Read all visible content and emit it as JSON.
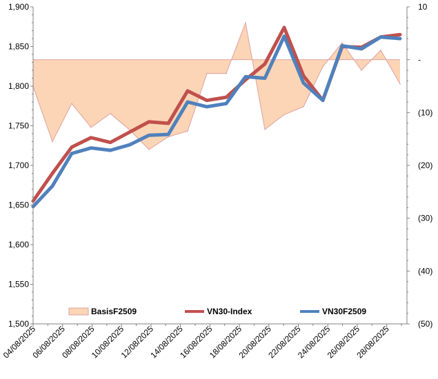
{
  "chart_data": {
    "type": "line",
    "title": "",
    "xlabel": "",
    "ylabel": "",
    "y2label": "",
    "ylim": [
      1500,
      1900
    ],
    "y2lim": [
      -50,
      10
    ],
    "y_ticks": [
      {
        "value": 1500,
        "label": "1,500"
      },
      {
        "value": 1550,
        "label": "1,550"
      },
      {
        "value": 1600,
        "label": "1,600"
      },
      {
        "value": 1650,
        "label": "1,650"
      },
      {
        "value": 1700,
        "label": "1,700"
      },
      {
        "value": 1750,
        "label": "1,750"
      },
      {
        "value": 1800,
        "label": "1,800"
      },
      {
        "value": 1850,
        "label": "1,850"
      },
      {
        "value": 1900,
        "label": "1,900"
      }
    ],
    "y2_ticks": [
      {
        "value": 10,
        "label": "10"
      },
      {
        "value": 0,
        "label": "-"
      },
      {
        "value": -10,
        "label": "(10)"
      },
      {
        "value": -20,
        "label": "(20)"
      },
      {
        "value": -30,
        "label": "(30)"
      },
      {
        "value": -40,
        "label": "(40)"
      },
      {
        "value": -50,
        "label": "(50)"
      }
    ],
    "x_tick_labels": [
      "04/08/2025",
      "06/08/2025",
      "08/08/2025",
      "10/08/2025",
      "12/08/2025",
      "14/08/2025",
      "16/08/2025",
      "18/08/2025",
      "20/08/2025",
      "22/08/2025",
      "24/08/2025",
      "26/08/2025",
      "28/08/2025"
    ],
    "x": [
      "04/08/2025",
      "05/08/2025",
      "06/08/2025",
      "07/08/2025",
      "08/08/2025",
      "11/08/2025",
      "12/08/2025",
      "13/08/2025",
      "14/08/2025",
      "15/08/2025",
      "18/08/2025",
      "19/08/2025",
      "20/08/2025",
      "21/08/2025",
      "22/08/2025",
      "25/08/2025",
      "26/08/2025",
      "27/08/2025",
      "28/08/2025",
      "29/08/2025"
    ],
    "series": [
      {
        "name": "BasisF2509",
        "axis": "secondary",
        "style": "area",
        "color": "#fbd5b5",
        "edge_color": "#e0a0a0",
        "values": [
          -5.1,
          -15.5,
          -8.3,
          -12.8,
          -10.2,
          -13.3,
          -17.0,
          -14.6,
          -13.5,
          -2.6,
          -2.6,
          7.0,
          -13.2,
          -10.4,
          -8.9,
          -1.3,
          3.2,
          -2.0,
          1.8,
          -4.6
        ]
      },
      {
        "name": "VN30-Index",
        "axis": "primary",
        "style": "line",
        "color": "#c0504d",
        "values": [
          1655,
          1690,
          1723,
          1735,
          1729,
          1742,
          1755,
          1753,
          1794,
          1782,
          1786,
          1808,
          1828,
          1874,
          1813,
          1782,
          1850,
          1849,
          1862,
          1865
        ]
      },
      {
        "name": "VN30F2509",
        "axis": "primary",
        "style": "line",
        "color": "#4f81bd",
        "values": [
          1648,
          1674,
          1715,
          1722,
          1719,
          1726,
          1738,
          1739,
          1780,
          1774,
          1778,
          1812,
          1810,
          1863,
          1804,
          1782,
          1851,
          1847,
          1862,
          1860
        ]
      }
    ],
    "grid": false,
    "legend_position": "bottom-inside"
  }
}
